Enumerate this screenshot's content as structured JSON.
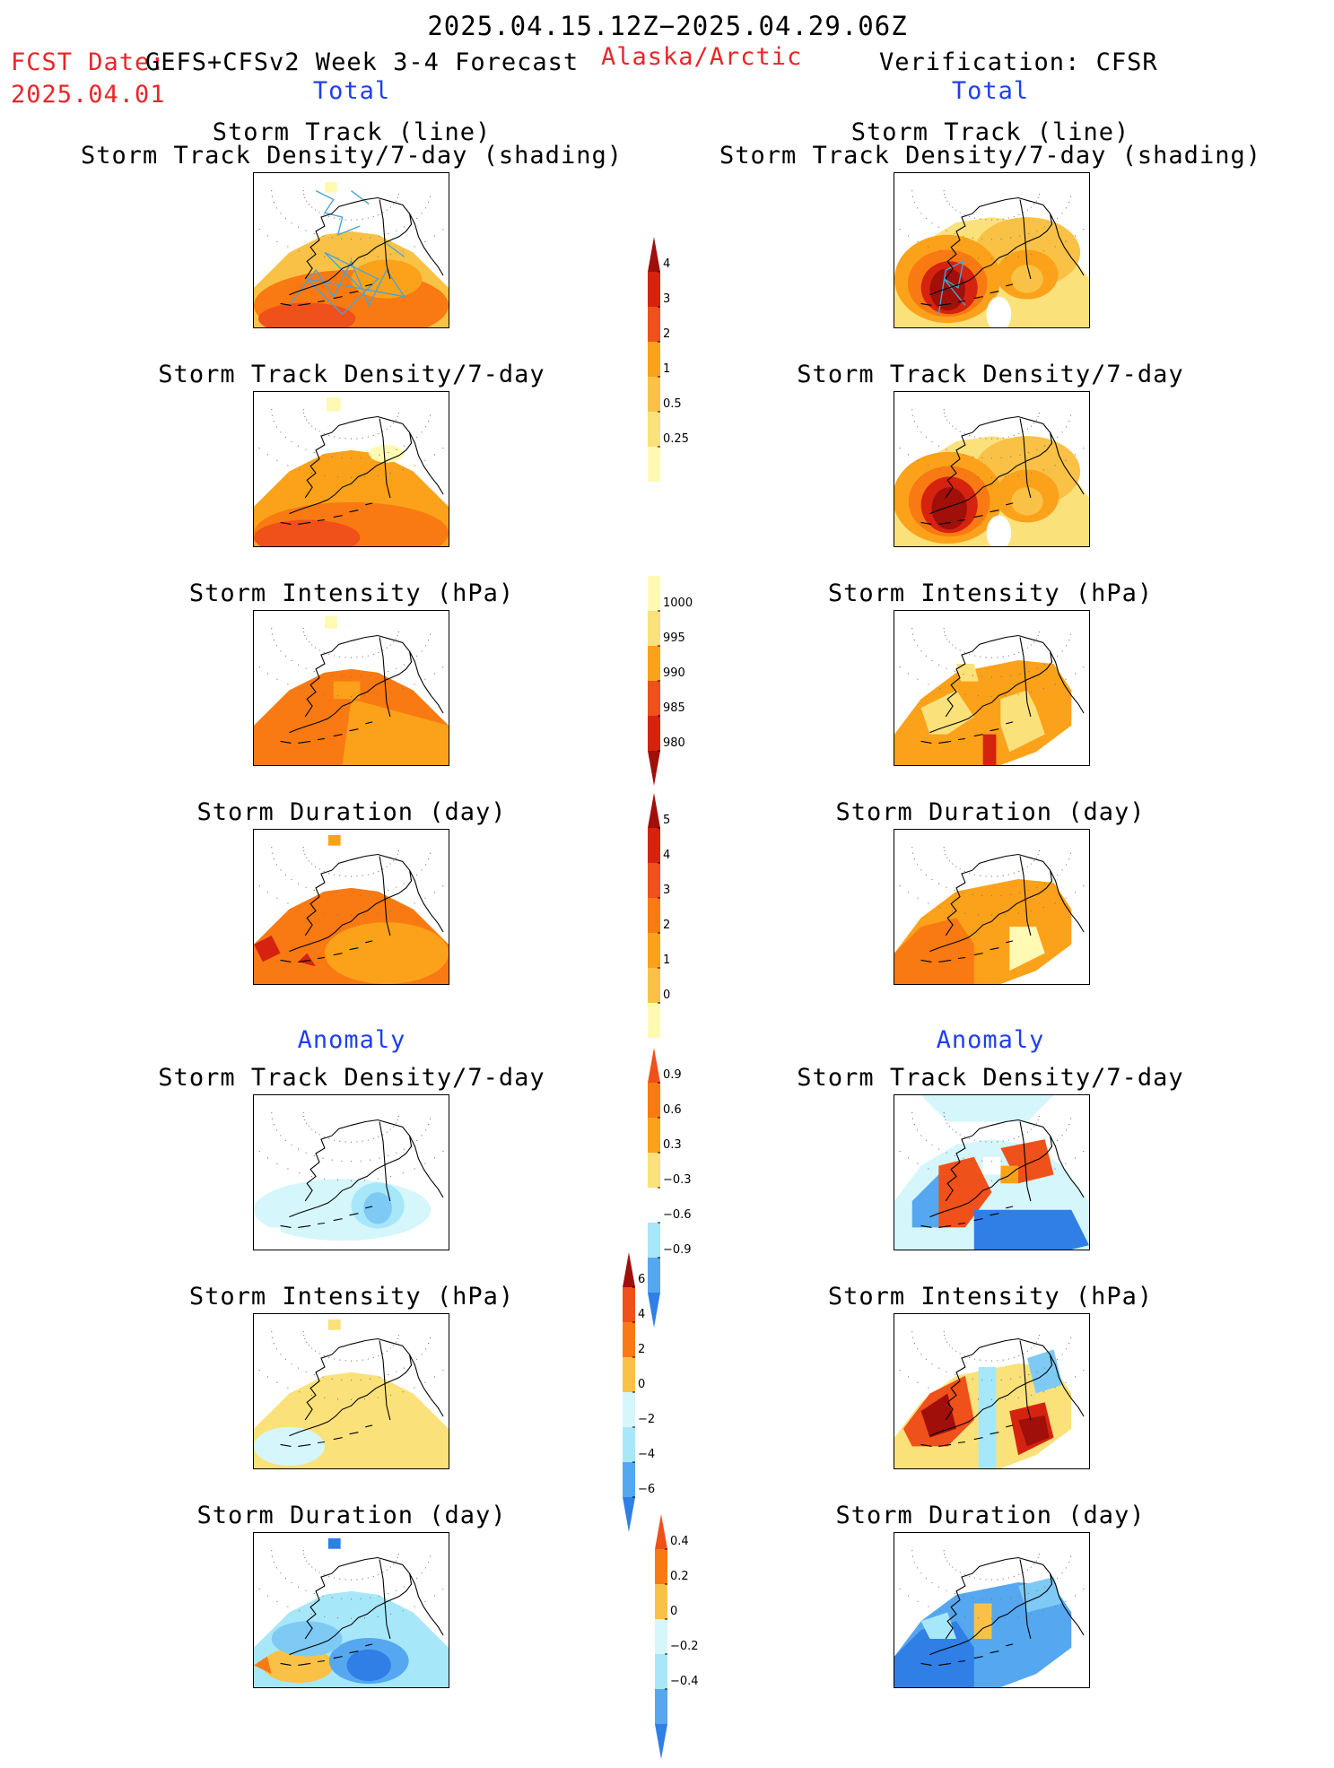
{
  "header": {
    "date_range": "2025.04.15.12Z−2025.04.29.06Z",
    "fcst_label": "FCST Date:",
    "model": "GEFS+CFSv2 Week 3-4 Forecast",
    "fcst_date": "2025.04.01",
    "region": "Alaska/Arctic",
    "verification": "Verification: CFSR"
  },
  "sections": {
    "total_left": "Total",
    "total_right": "Total",
    "anomaly_left": "Anomaly",
    "anomaly_right": "Anomaly"
  },
  "panel_titles": {
    "track_line": "Storm Track (line)",
    "track_shading": "Storm Track Density/7-day (shading)",
    "density": "Storm Track Density/7-day",
    "intensity": "Storm Intensity (hPa)",
    "duration": "Storm Duration (day)"
  },
  "colorbars": {
    "density_total": [
      "4",
      "3",
      "2",
      "1",
      "0.5",
      "0.25"
    ],
    "intensity_total": [
      "1000",
      "995",
      "990",
      "985",
      "980"
    ],
    "duration_total": [
      "5",
      "4",
      "3",
      "2",
      "1",
      "0"
    ],
    "density_anom": [
      "0.9",
      "0.6",
      "0.3",
      "−0.3",
      "−0.6",
      "−0.9"
    ],
    "intensity_anom": [
      "6",
      "4",
      "2",
      "0",
      "−2",
      "−4",
      "−6"
    ],
    "duration_anom": [
      "0.4",
      "0.2",
      "0",
      "−0.2",
      "−0.4"
    ]
  },
  "colors": {
    "warm": [
      "#fff9b4",
      "#fbe17a",
      "#f9c246",
      "#fba21a",
      "#f97a12",
      "#f0501a",
      "#d52310",
      "#a00f0a"
    ],
    "cool": [
      "#d5f6fb",
      "#a7e7fa",
      "#7ecaf5",
      "#55a7ef",
      "#2f7fe6",
      "#1059d6"
    ],
    "track_line": "#4aa3d8"
  }
}
